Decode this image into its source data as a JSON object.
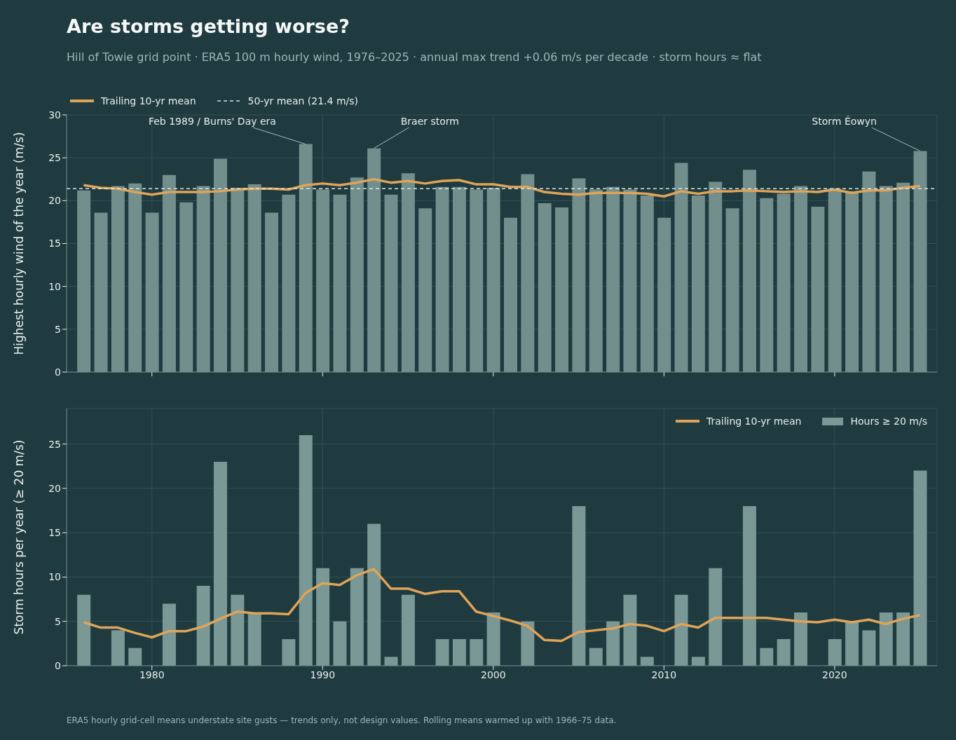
{
  "chart_data": [
    {
      "type": "bar",
      "title": "Are storms getting worse?",
      "subtitle": "Hill of Towie grid point · ERA5 100 m hourly wind, 1976–2025 · annual max trend +0.06 m/s per decade · storm hours ≈ flat",
      "ylabel": "Highest hourly wind of the year (m/s)",
      "x": [
        1976,
        1977,
        1978,
        1979,
        1980,
        1981,
        1982,
        1983,
        1984,
        1985,
        1986,
        1987,
        1988,
        1989,
        1990,
        1991,
        1992,
        1993,
        1994,
        1995,
        1996,
        1997,
        1998,
        1999,
        2000,
        2001,
        2002,
        2003,
        2004,
        2005,
        2006,
        2007,
        2008,
        2009,
        2010,
        2011,
        2012,
        2013,
        2014,
        2015,
        2016,
        2017,
        2018,
        2019,
        2020,
        2021,
        2022,
        2023,
        2024,
        2025
      ],
      "series": [
        {
          "color": "#728f8e",
          "values": [
            21.2,
            18.6,
            21.7,
            22.0,
            18.6,
            23.0,
            19.8,
            21.7,
            24.9,
            21.5,
            21.9,
            18.6,
            20.7,
            26.6,
            21.3,
            20.7,
            22.7,
            26.1,
            20.7,
            23.2,
            19.1,
            21.6,
            21.6,
            21.3,
            21.5,
            18.0,
            23.1,
            19.7,
            19.2,
            22.6,
            21.3,
            21.6,
            21.3,
            20.6,
            18.0,
            24.4,
            20.6,
            22.2,
            19.1,
            23.6,
            20.3,
            20.8,
            21.7,
            19.3,
            21.4,
            21.1,
            23.4,
            21.7,
            22.1,
            25.8
          ]
        },
        {
          "type": "line",
          "name": "Trailing 10-yr mean",
          "color": "#e0a458",
          "values": [
            21.8,
            21.5,
            21.4,
            21.0,
            20.7,
            21.0,
            21.0,
            21.0,
            21.1,
            21.3,
            21.4,
            21.4,
            21.3,
            21.8,
            22.0,
            21.8,
            22.1,
            22.5,
            22.1,
            22.3,
            22.0,
            22.3,
            22.4,
            21.9,
            21.9,
            21.6,
            21.6,
            21.0,
            20.8,
            20.7,
            20.9,
            20.9,
            20.9,
            20.8,
            20.5,
            21.1,
            20.8,
            21.1,
            21.1,
            21.2,
            21.1,
            21.0,
            21.1,
            21.0,
            21.3,
            20.9,
            21.2,
            21.2,
            21.5,
            21.7
          ]
        }
      ],
      "ref_lines": [
        {
          "axis": "y",
          "value": 21.4,
          "label": "50-yr mean (21.4 m/s)",
          "color": "#d8e4e2",
          "line_style": "dashed"
        }
      ],
      "annotations": [
        {
          "text": "Feb 1989 / Burns' Day era",
          "x": 1989,
          "y": 26.6
        },
        {
          "text": "Braer storm",
          "x": 1993,
          "y": 26.1
        },
        {
          "text": "Storm Éowyn",
          "x": 2025,
          "y": 25.8
        }
      ],
      "xlim": [
        1975,
        2026
      ],
      "xticks": [
        1980,
        1990,
        2000,
        2010,
        2020
      ],
      "ylim": [
        0,
        30
      ],
      "yticks": [
        0,
        5,
        10,
        15,
        20,
        25,
        30
      ],
      "grid": true,
      "legend": "top left",
      "tick_labels": "y"
    },
    {
      "type": "bar",
      "ylabel": "Storm hours per year (≥ 20 m/s)",
      "x": [
        1976,
        1977,
        1978,
        1979,
        1980,
        1981,
        1982,
        1983,
        1984,
        1985,
        1986,
        1987,
        1988,
        1989,
        1990,
        1991,
        1992,
        1993,
        1994,
        1995,
        1996,
        1997,
        1998,
        1999,
        2000,
        2001,
        2002,
        2003,
        2004,
        2005,
        2006,
        2007,
        2008,
        2009,
        2010,
        2011,
        2012,
        2013,
        2014,
        2015,
        2016,
        2017,
        2018,
        2019,
        2020,
        2021,
        2022,
        2023,
        2024,
        2025
      ],
      "series": [
        {
          "name": "Hours ≥ 20 m/s",
          "color": "#7a9896",
          "values": [
            8,
            0,
            4,
            2,
            0,
            7,
            0,
            9,
            23,
            8,
            6,
            0,
            3,
            26,
            11,
            5,
            11,
            16,
            1,
            8,
            0,
            3,
            3,
            3,
            6,
            0,
            5,
            0,
            0,
            18,
            2,
            5,
            8,
            1,
            0,
            8,
            1,
            11,
            0,
            18,
            2,
            3,
            6,
            0,
            3,
            5,
            4,
            6,
            6,
            22
          ]
        },
        {
          "type": "line",
          "name": "Trailing 10-yr mean",
          "color": "#e0a458",
          "values": [
            4.9,
            4.3,
            4.3,
            3.7,
            3.2,
            3.9,
            3.9,
            4.4,
            5.3,
            6.1,
            5.9,
            5.9,
            5.8,
            8.2,
            9.3,
            9.1,
            10.2,
            10.9,
            8.7,
            8.7,
            8.1,
            8.4,
            8.4,
            6.1,
            5.6,
            5.1,
            4.5,
            2.9,
            2.8,
            3.8,
            4.0,
            4.2,
            4.7,
            4.5,
            3.9,
            4.7,
            4.3,
            5.4,
            5.4,
            5.4,
            5.4,
            5.2,
            5.0,
            4.9,
            5.2,
            4.9,
            5.2,
            4.7,
            5.3,
            5.7
          ]
        }
      ],
      "annotations": [
        "ERA5 hourly grid-cell means understate site gusts — trends only, not design values. Rolling means warmed up with 1966–75 data."
      ],
      "xlim": [
        1975,
        2026
      ],
      "xticks": [
        1980,
        1990,
        2000,
        2010,
        2020
      ],
      "ylim": [
        0,
        29
      ],
      "yticks": [
        0,
        5,
        10,
        15,
        20,
        25
      ],
      "grid": true,
      "legend": "top right"
    }
  ]
}
